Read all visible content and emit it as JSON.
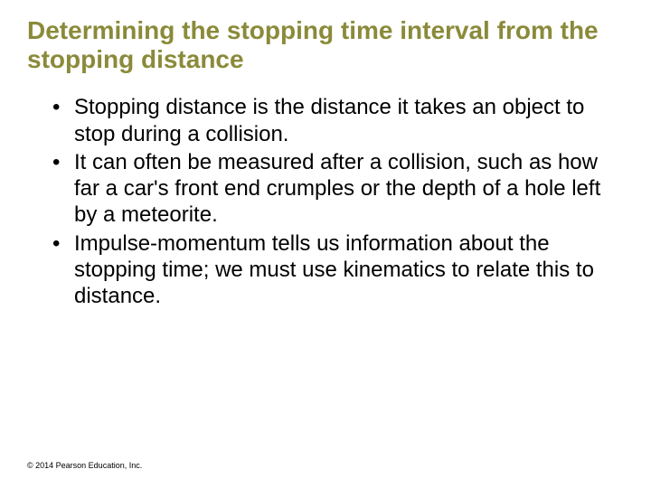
{
  "title_color": "#8a8a3a",
  "body_color": "#000000",
  "background_color": "#ffffff",
  "title_fontsize": 28,
  "body_fontsize": 24,
  "footer_fontsize": 9,
  "title": "Determining the stopping time interval from the stopping distance",
  "bullets": [
    "Stopping distance is the distance it takes an object to stop during a collision.",
    "It can often be measured after a collision, such as how far a car's front end crumples or the depth of a hole left by a meteorite.",
    "Impulse-momentum tells us information about the stopping time; we must use kinematics to relate this to distance."
  ],
  "footer": "© 2014 Pearson Education, Inc."
}
